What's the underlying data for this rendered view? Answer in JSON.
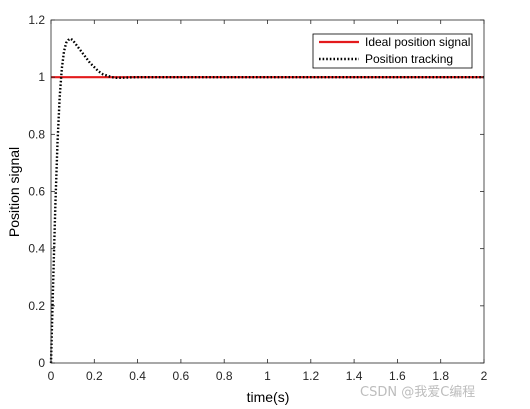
{
  "chart_data": {
    "type": "line",
    "xlabel": "time(s)",
    "ylabel": "Position signal",
    "xlim": [
      0,
      2
    ],
    "ylim": [
      0,
      1.2
    ],
    "x_ticks": [
      0,
      0.2,
      0.4,
      0.6,
      0.8,
      1,
      1.2,
      1.4,
      1.6,
      1.8,
      2
    ],
    "x_tick_labels": [
      "0",
      "0.2",
      "0.4",
      "0.6",
      "0.8",
      "1",
      "1.2",
      "1.4",
      "1.6",
      "1.8",
      "2"
    ],
    "y_ticks": [
      0,
      0.2,
      0.4,
      0.6,
      0.8,
      1,
      1.2
    ],
    "y_tick_labels": [
      "0",
      "0.2",
      "0.4",
      "0.6",
      "0.8",
      "1",
      "1.2"
    ],
    "grid": false,
    "legend_position": "top-right",
    "series": [
      {
        "name": "Ideal position signal",
        "color": "#e31a1c",
        "style": "solid",
        "x": [
          0,
          2
        ],
        "y": [
          1,
          1
        ]
      },
      {
        "name": "Position tracking",
        "color": "#000000",
        "style": "dotted",
        "x": [
          0,
          0.01,
          0.02,
          0.03,
          0.04,
          0.05,
          0.06,
          0.07,
          0.08,
          0.09,
          0.1,
          0.11,
          0.12,
          0.13,
          0.14,
          0.15,
          0.16,
          0.18,
          0.2,
          0.22,
          0.24,
          0.26,
          0.28,
          0.3,
          0.33,
          0.36,
          0.4,
          0.45,
          0.5,
          0.6,
          0.8,
          1.0,
          1.2,
          1.4,
          1.6,
          1.8,
          2.0
        ],
        "y": [
          0,
          0.28,
          0.55,
          0.77,
          0.93,
          1.03,
          1.09,
          1.12,
          1.13,
          1.135,
          1.13,
          1.12,
          1.11,
          1.1,
          1.09,
          1.08,
          1.07,
          1.05,
          1.035,
          1.02,
          1.01,
          1.005,
          1.0,
          0.998,
          0.998,
          0.999,
          1.0,
          1.0,
          1.0,
          1.0,
          1.0,
          1.0,
          1.0,
          1.0,
          1.0,
          1.0,
          1.0
        ]
      }
    ]
  },
  "watermark": "CSDN @我爱C编程"
}
